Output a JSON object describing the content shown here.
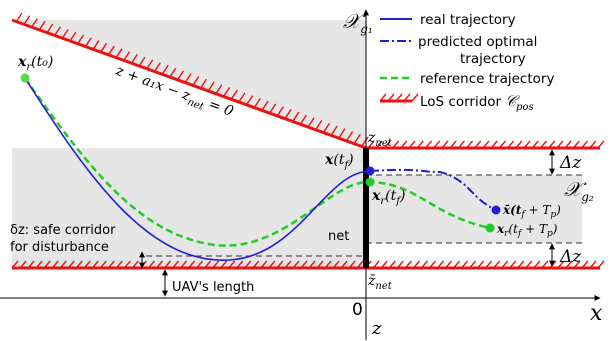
{
  "colors": {
    "real": "#1f1fd6",
    "predicted": "#1f1fd6",
    "reference": "#22cc22",
    "corridor": "#ee1111",
    "shaded_region": "#e8e8e8"
  },
  "legend": {
    "real": "real trajectory",
    "predicted_line1": "predicted optimal",
    "predicted_line2": "trajectory",
    "reference": "reference trajectory",
    "corridor": "LoS corridor"
  },
  "labels": {
    "region_upper": "𝒳",
    "region_upper_sub": "g₁",
    "region_lower": "𝒳",
    "region_lower_sub": "g₂",
    "corridor_sym": "𝒞",
    "corridor_sub": "pos",
    "slanted_line_eq": "z + a₁x − z",
    "slanted_line_sub": "net",
    "slanted_line_rhs": " = 0",
    "xr_t0_x": "x",
    "xr_t0_rest": "(t₀)",
    "xr_sub": "r",
    "x_tf_x": "x",
    "x_tf_rest": "(t",
    "x_tf_sub": "f",
    "x_tf_close": ")",
    "xr_tf_rest": "(t",
    "xr_tf_close": ")",
    "xbar_pred": "x̄(t",
    "xbar_pred_rest": " + T",
    "xbar_pred_sub": "p",
    "xbar_pred_close": ")",
    "xr_pred_rest": "(t",
    "xr_pred_plus": " + T",
    "xr_pred_close": ")",
    "z_net_top": "z",
    "z_net_top_sub": "net",
    "z_net_bottom": "z̄",
    "z_net_bottom_sub": "net",
    "delta_z_top": "Δz",
    "delta_z_bottom": "Δz",
    "net_label": "net",
    "safe_corridor_line1": "δz: safe corridor",
    "safe_corridor_line2": "for disturbance",
    "uav_length": "UAV's length",
    "origin": "0",
    "x_axis": "x",
    "z_axis": "z"
  }
}
